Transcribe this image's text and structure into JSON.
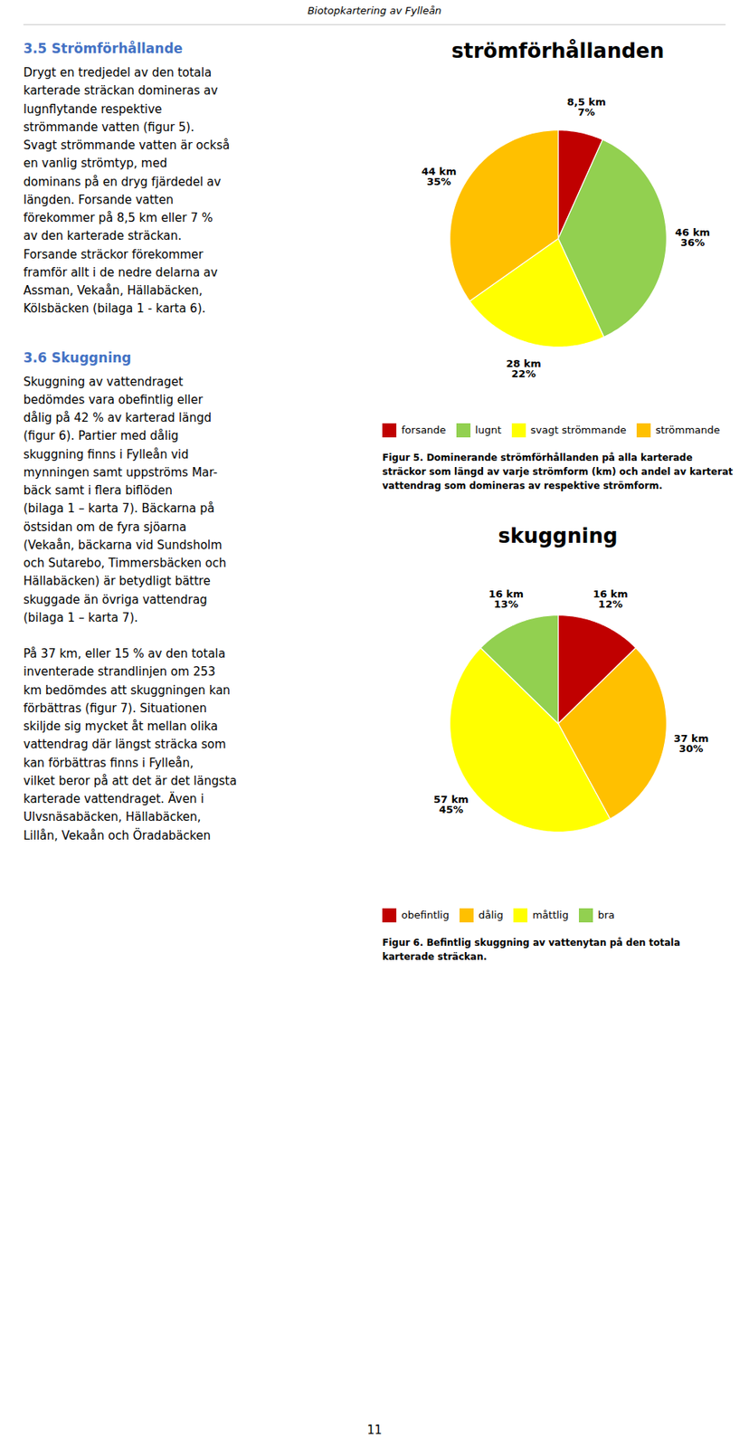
{
  "page_title": "Biotopkartering av Fylleån",
  "page_number": "11",
  "sections": [
    {
      "title": "3.5 Strömförhållande",
      "paragraphs": [
        [
          "Drygt en tredjedel av den totala",
          "karterade sträckan domineras av",
          "lugnflytande respektive",
          "strömmande vatten (figur 5).",
          "Svagt strömmande vatten är också",
          "en vanlig strömtyp, med",
          "dominans på en dryg fjärdedel av",
          "längden. Forsande vatten",
          "förekommer på 8,5 km eller 7 %",
          "av den karterade sträckan.",
          "Forsande sträckor förekommer",
          "framför allt i de nedre delarna av",
          "Assman, Vekaån, Hällabäcken,",
          "Kölsbäcken (bilaga 1 - karta 6)."
        ]
      ]
    },
    {
      "title": "3.6 Skuggning",
      "paragraphs": [
        [
          "Skuggning av vattendraget",
          "bedömdes vara obefintlig eller",
          "dålig på 42 % av karterad längd",
          "(figur 6). Partier med dålig",
          "skuggning finns i Fylleån vid",
          "mynningen samt uppströms Mar-",
          "bäck samt i flera biflöden",
          "(bilaga 1 – karta 7). Bäckarna på",
          "östsidan om de fyra sjöarna",
          "(Vekaån, bäckarna vid Sundsholm",
          "och Sutarebo, Timmersbäcken och",
          "Hällabäcken) är betydligt bättre",
          "skuggade än övriga vattendrag",
          "(bilaga 1 – karta 7)."
        ],
        [
          "På 37 km, eller 15 % av den totala",
          "inventerade strandlinjen om 253",
          "km bedömdes att skuggningen kan",
          "förbättras (figur 7). Situationen",
          "skiljde sig mycket åt mellan olika",
          "vattendrag där längst sträcka som",
          "kan förbättras finns i Fylleån,",
          "vilket beror på att det är det längsta",
          "karterade vattendraget. Även i",
          "Ulvsnäsabäcken, Hällabäcken,",
          "Lillån, Vekaån och Öradabäcken"
        ]
      ]
    }
  ],
  "chart_data": [
    {
      "type": "pie",
      "title": "strömförhållanden",
      "categories": [
        "forsande",
        "lugnt",
        "svagt strömmande",
        "strömmande"
      ],
      "values": [
        8.5,
        46,
        28,
        44
      ],
      "value_labels": [
        "8,5 km\n7%",
        "46 km\n36%",
        "28 km\n22%",
        "44 km\n35%"
      ],
      "colors": [
        "#C00000",
        "#92D050",
        "#FFFF00",
        "#FFC000"
      ],
      "data_labels": true,
      "legend": "bottom",
      "caption": "Figur 5. Dominerande strömförhållanden på alla karterade sträckor som längd av varje strömform (km) och andel av karterat vattendrag som domineras av respektive strömform."
    },
    {
      "type": "pie",
      "title": "skuggning",
      "categories": [
        "obefintlig",
        "dålig",
        "måttlig",
        "bra"
      ],
      "values": [
        16,
        37,
        57,
        16
      ],
      "value_labels": [
        "16 km\n12%",
        "37 km\n30%",
        "57 km\n45%",
        "16 km\n13%"
      ],
      "colors": [
        "#C00000",
        "#FFC000",
        "#FFFF00",
        "#92D050"
      ],
      "data_labels": true,
      "legend": "bottom",
      "caption": "Figur 6. Befintlig skuggning av vattenytan på den totala karterade sträckan."
    }
  ]
}
